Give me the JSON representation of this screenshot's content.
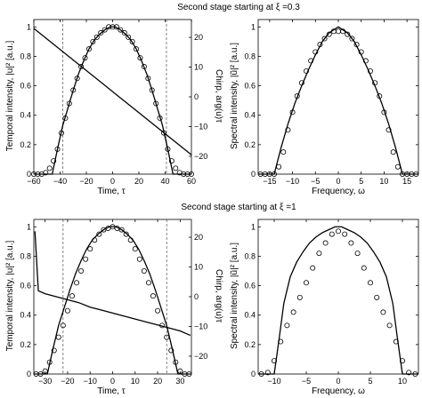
{
  "figure_titles": {
    "top": "Second stage starting at  ξ =0.3",
    "bottom": "Second stage starting at  ξ =1"
  },
  "axis_labels": {
    "temporal_y": "Temporal intensity, |u|² [a.u.]",
    "chirp_y": "Chirp, arg(u)τ",
    "time_x": "Time, τ",
    "spectral_y": "Spectral intensity, |ũ|² [a.u.]",
    "freq_x": "Frequency, ω"
  },
  "chart_data": [
    {
      "id": "top-time",
      "type": "line",
      "xlim": [
        -60,
        60
      ],
      "ylim": [
        0,
        1.05
      ],
      "xticks": [
        -60,
        -40,
        -20,
        0,
        20,
        40,
        60
      ],
      "yticks": [
        0,
        0.2,
        0.4,
        0.6,
        0.8,
        1
      ],
      "y2lim": [
        -26,
        26
      ],
      "y2ticks": [
        -20,
        -10,
        0,
        10,
        20
      ],
      "pulse_halfwidth": 46,
      "vlines": [
        -38,
        41
      ],
      "series": [
        {
          "role": "temporal-intensity",
          "x": [
            -46,
            -42,
            -38,
            -34,
            -30,
            -26,
            -22,
            -18,
            -14,
            -10,
            -6,
            -2,
            0,
            2,
            6,
            10,
            14,
            18,
            22,
            26,
            30,
            34,
            38,
            42,
            46
          ],
          "y": [
            0.0,
            0.17,
            0.33,
            0.45,
            0.57,
            0.68,
            0.77,
            0.85,
            0.91,
            0.95,
            0.98,
            1.0,
            1.0,
            1.0,
            0.98,
            0.95,
            0.91,
            0.85,
            0.77,
            0.68,
            0.57,
            0.45,
            0.33,
            0.17,
            0.0
          ]
        },
        {
          "role": "temporal-intensity-markers",
          "x": [
            -60,
            -57,
            -54,
            -51,
            -48,
            -45,
            -42,
            -39,
            -36,
            -33,
            -30,
            -27,
            -24,
            -21,
            -18,
            -15,
            -12,
            -9,
            -6,
            -3,
            0,
            3,
            6,
            9,
            12,
            15,
            18,
            21,
            24,
            27,
            30,
            33,
            36,
            39,
            42,
            45,
            48,
            51,
            54,
            57,
            60
          ],
          "y": [
            0,
            0,
            0,
            0.01,
            0.04,
            0.09,
            0.17,
            0.28,
            0.38,
            0.48,
            0.57,
            0.65,
            0.73,
            0.79,
            0.85,
            0.9,
            0.93,
            0.96,
            0.98,
            1.0,
            1.0,
            1.0,
            0.98,
            0.96,
            0.93,
            0.9,
            0.85,
            0.79,
            0.73,
            0.65,
            0.57,
            0.48,
            0.38,
            0.28,
            0.17,
            0.09,
            0.04,
            0.01,
            0,
            0,
            0
          ]
        },
        {
          "role": "chirp",
          "x": [
            -60,
            60
          ],
          "y": [
            23,
            -19.5
          ]
        }
      ]
    },
    {
      "id": "top-freq",
      "type": "line",
      "xlim": [
        -17.5,
        17.5
      ],
      "ylim": [
        0,
        1.05
      ],
      "xticks": [
        -15,
        -10,
        -5,
        0,
        5,
        10,
        15
      ],
      "yticks": [
        0,
        0.2,
        0.4,
        0.6,
        0.8,
        1
      ],
      "series": [
        {
          "role": "spectral-intensity",
          "x": [
            -14,
            -12.5,
            -11,
            -9.5,
            -8,
            -6.5,
            -5,
            -3.5,
            -2,
            -0.5,
            0,
            0.5,
            2,
            3.5,
            5,
            6.5,
            8,
            9.5,
            11,
            12.5,
            14
          ],
          "y": [
            0.0,
            0.18,
            0.34,
            0.48,
            0.6,
            0.71,
            0.81,
            0.9,
            0.96,
            0.99,
            1.0,
            0.99,
            0.96,
            0.9,
            0.81,
            0.71,
            0.6,
            0.48,
            0.34,
            0.18,
            0.0
          ]
        },
        {
          "role": "spectral-intensity-markers",
          "x": [
            -17,
            -16,
            -15,
            -14,
            -13,
            -12,
            -11,
            -10,
            -9,
            -8,
            -7,
            -6,
            -5,
            -4,
            -3,
            -2,
            -1,
            0,
            1,
            2,
            3,
            4,
            5,
            6,
            7,
            8,
            9,
            10,
            11,
            12,
            13,
            14,
            15,
            16,
            17
          ],
          "y": [
            0,
            0,
            0,
            0,
            0.05,
            0.15,
            0.3,
            0.42,
            0.53,
            0.62,
            0.7,
            0.77,
            0.83,
            0.88,
            0.92,
            0.95,
            0.97,
            0.97,
            0.97,
            0.95,
            0.92,
            0.88,
            0.83,
            0.77,
            0.7,
            0.62,
            0.53,
            0.42,
            0.3,
            0.15,
            0.05,
            0,
            0,
            0,
            0
          ]
        }
      ]
    },
    {
      "id": "bottom-time",
      "type": "line",
      "xlim": [
        -35,
        35
      ],
      "ylim": [
        0,
        1.05
      ],
      "xticks": [
        -30,
        -20,
        -10,
        0,
        10,
        20,
        30
      ],
      "yticks": [
        0,
        0.2,
        0.4,
        0.6,
        0.8,
        1
      ],
      "y2lim": [
        -26,
        26
      ],
      "y2ticks": [
        -20,
        -10,
        0,
        10,
        20
      ],
      "pulse_halfwidth": 29,
      "vlines": [
        -22,
        24
      ],
      "series": [
        {
          "role": "temporal-intensity",
          "x": [
            -29,
            -26.5,
            -24,
            -21.5,
            -19,
            -16.5,
            -14,
            -11.5,
            -9,
            -6.5,
            -4,
            -1.5,
            0,
            1.5,
            4,
            6.5,
            9,
            11.5,
            14,
            16.5,
            19,
            21.5,
            24,
            26.5,
            29
          ],
          "y": [
            0.0,
            0.17,
            0.33,
            0.45,
            0.57,
            0.68,
            0.77,
            0.85,
            0.91,
            0.95,
            0.98,
            1.0,
            1.0,
            1.0,
            0.98,
            0.95,
            0.91,
            0.85,
            0.77,
            0.68,
            0.57,
            0.45,
            0.33,
            0.17,
            0.0
          ]
        },
        {
          "role": "temporal-intensity-markers",
          "x": [
            -34,
            -32,
            -30,
            -28,
            -26,
            -24,
            -22,
            -20,
            -18,
            -16,
            -14,
            -12,
            -10,
            -8,
            -6,
            -4,
            -2,
            0,
            2,
            4,
            6,
            8,
            10,
            12,
            14,
            16,
            18,
            20,
            22,
            24,
            26,
            28,
            30,
            32,
            34
          ],
          "y": [
            0,
            0,
            0.02,
            0.08,
            0.16,
            0.25,
            0.33,
            0.43,
            0.53,
            0.62,
            0.7,
            0.78,
            0.85,
            0.91,
            0.95,
            0.98,
            0.99,
            1.0,
            0.99,
            0.98,
            0.95,
            0.91,
            0.85,
            0.78,
            0.7,
            0.62,
            0.53,
            0.43,
            0.33,
            0.25,
            0.16,
            0.08,
            0.02,
            0,
            0
          ]
        },
        {
          "role": "chirp",
          "x": [
            -34.5,
            -33,
            -30,
            -25,
            -20,
            -15,
            -10,
            -5,
            0,
            5,
            10,
            15,
            20,
            25,
            30,
            33,
            34.5
          ],
          "y": [
            22,
            2,
            1,
            0,
            -1,
            -2,
            -3.5,
            -4.5,
            -5.5,
            -6.5,
            -7.5,
            -8.5,
            -9.5,
            -10.5,
            -11.5,
            -12.5,
            -13
          ]
        }
      ]
    },
    {
      "id": "bottom-freq",
      "type": "line",
      "xlim": [
        -12.5,
        12.5
      ],
      "ylim": [
        0,
        1.05
      ],
      "xticks": [
        -10,
        -5,
        0,
        5,
        10
      ],
      "yticks": [
        0,
        0.2,
        0.4,
        0.6,
        0.8,
        1
      ],
      "series": [
        {
          "role": "spectral-intensity",
          "x": [
            -10,
            -9.2,
            -8.5,
            -7.5,
            -6.5,
            -5.5,
            -4.5,
            -3.5,
            -2.5,
            -1.5,
            -0.5,
            0,
            0.5,
            1.5,
            2.5,
            3.5,
            4.5,
            5.5,
            6.5,
            7.5,
            8.5,
            9.2,
            10
          ],
          "y": [
            0.0,
            0.25,
            0.48,
            0.66,
            0.76,
            0.83,
            0.89,
            0.93,
            0.96,
            0.98,
            1.0,
            1.0,
            1.0,
            0.98,
            0.96,
            0.93,
            0.89,
            0.83,
            0.76,
            0.66,
            0.48,
            0.25,
            0.0
          ]
        },
        {
          "role": "spectral-intensity-markers",
          "x": [
            -12,
            -11,
            -10,
            -9,
            -8,
            -7,
            -6,
            -5,
            -4,
            -3,
            -2,
            -1,
            0,
            1,
            2,
            3,
            4,
            5,
            6,
            7,
            8,
            9,
            10,
            11,
            12
          ],
          "y": [
            0,
            0.01,
            0.09,
            0.22,
            0.33,
            0.42,
            0.52,
            0.62,
            0.72,
            0.82,
            0.89,
            0.95,
            0.97,
            0.95,
            0.89,
            0.82,
            0.72,
            0.62,
            0.52,
            0.42,
            0.33,
            0.22,
            0.09,
            0.01,
            0
          ]
        }
      ]
    }
  ]
}
